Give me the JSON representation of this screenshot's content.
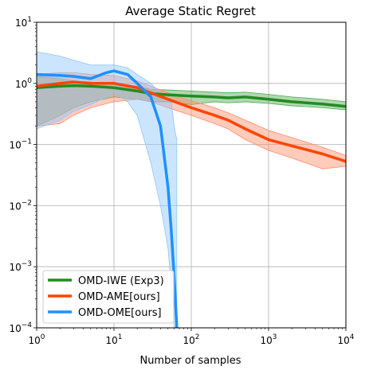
{
  "chart_data": {
    "type": "line",
    "title": "Average Static Regret",
    "xlabel": "Number of samples",
    "ylabel": "",
    "xscale": "log",
    "yscale": "log",
    "xlim": [
      1,
      10000
    ],
    "ylim": [
      0.0001,
      10
    ],
    "grid": true,
    "legend_position": "lower-left",
    "x_ticks": [
      {
        "value": 1,
        "base": "10",
        "exp": "0"
      },
      {
        "value": 10,
        "base": "10",
        "exp": "1"
      },
      {
        "value": 100,
        "base": "10",
        "exp": "2"
      },
      {
        "value": 1000,
        "base": "10",
        "exp": "3"
      },
      {
        "value": 10000,
        "base": "10",
        "exp": "4"
      }
    ],
    "y_ticks": [
      {
        "value": 0.0001,
        "base": "10",
        "exp": "−4"
      },
      {
        "value": 0.001,
        "base": "10",
        "exp": "−3"
      },
      {
        "value": 0.01,
        "base": "10",
        "exp": "−2"
      },
      {
        "value": 0.1,
        "base": "10",
        "exp": "−1"
      },
      {
        "value": 1,
        "base": "10",
        "exp": "0"
      },
      {
        "value": 10,
        "base": "10",
        "exp": "1"
      }
    ],
    "series": [
      {
        "name": "OMD-IWE (Exp3)",
        "color": "#228b22",
        "fill": "#4fa84f",
        "x": [
          1,
          2,
          3,
          5,
          10,
          20,
          30,
          50,
          100,
          200,
          300,
          500,
          1000,
          2000,
          5000,
          10000
        ],
        "y": [
          0.85,
          0.9,
          0.92,
          0.9,
          0.85,
          0.75,
          0.68,
          0.65,
          0.62,
          0.6,
          0.58,
          0.6,
          0.55,
          0.5,
          0.46,
          0.42
        ],
        "upper": [
          1.3,
          1.2,
          1.1,
          1.05,
          1.0,
          0.9,
          0.8,
          0.78,
          0.75,
          0.72,
          0.7,
          0.72,
          0.66,
          0.6,
          0.55,
          0.5
        ],
        "lower": [
          0.2,
          0.3,
          0.4,
          0.5,
          0.6,
          0.55,
          0.5,
          0.5,
          0.45,
          0.5,
          0.48,
          0.5,
          0.47,
          0.43,
          0.4,
          0.37
        ]
      },
      {
        "name": "OMD-AME[ours]",
        "color": "#ff4500",
        "fill": "#ff8c69",
        "x": [
          1,
          2,
          3,
          5,
          10,
          20,
          30,
          50,
          100,
          200,
          300,
          500,
          1000,
          2000,
          5000,
          10000
        ],
        "y": [
          0.9,
          1.0,
          1.05,
          1.0,
          1.0,
          0.85,
          0.7,
          0.55,
          0.4,
          0.3,
          0.25,
          0.18,
          0.12,
          0.095,
          0.07,
          0.053
        ],
        "upper": [
          1.4,
          1.5,
          1.5,
          1.4,
          1.35,
          1.1,
          0.9,
          0.7,
          0.52,
          0.4,
          0.33,
          0.25,
          0.17,
          0.13,
          0.09,
          0.066
        ],
        "lower": [
          0.2,
          0.22,
          0.3,
          0.4,
          0.5,
          0.55,
          0.5,
          0.4,
          0.3,
          0.22,
          0.18,
          0.12,
          0.08,
          0.06,
          0.04,
          0.044
        ]
      },
      {
        "name": "OMD-OME[ours]",
        "color": "#1e90ff",
        "fill": "#8ec5ff",
        "x": [
          1,
          2,
          3,
          5,
          8,
          10,
          15,
          20,
          30,
          40,
          50,
          55,
          60,
          65
        ],
        "y": [
          1.4,
          1.35,
          1.3,
          1.2,
          1.5,
          1.6,
          1.4,
          1.0,
          0.6,
          0.2,
          0.02,
          0.004,
          0.0007,
          0.0001
        ],
        "upper": [
          3.3,
          2.8,
          2.4,
          2.0,
          2.0,
          2.0,
          1.8,
          1.4,
          1.0,
          0.7,
          0.55,
          0.5,
          0.2,
          0.12
        ],
        "lower": [
          0.18,
          0.25,
          0.35,
          0.45,
          0.6,
          0.7,
          0.5,
          0.3,
          0.05,
          0.01,
          0.002,
          0.0005,
          0.0001,
          0.0001
        ]
      }
    ]
  }
}
